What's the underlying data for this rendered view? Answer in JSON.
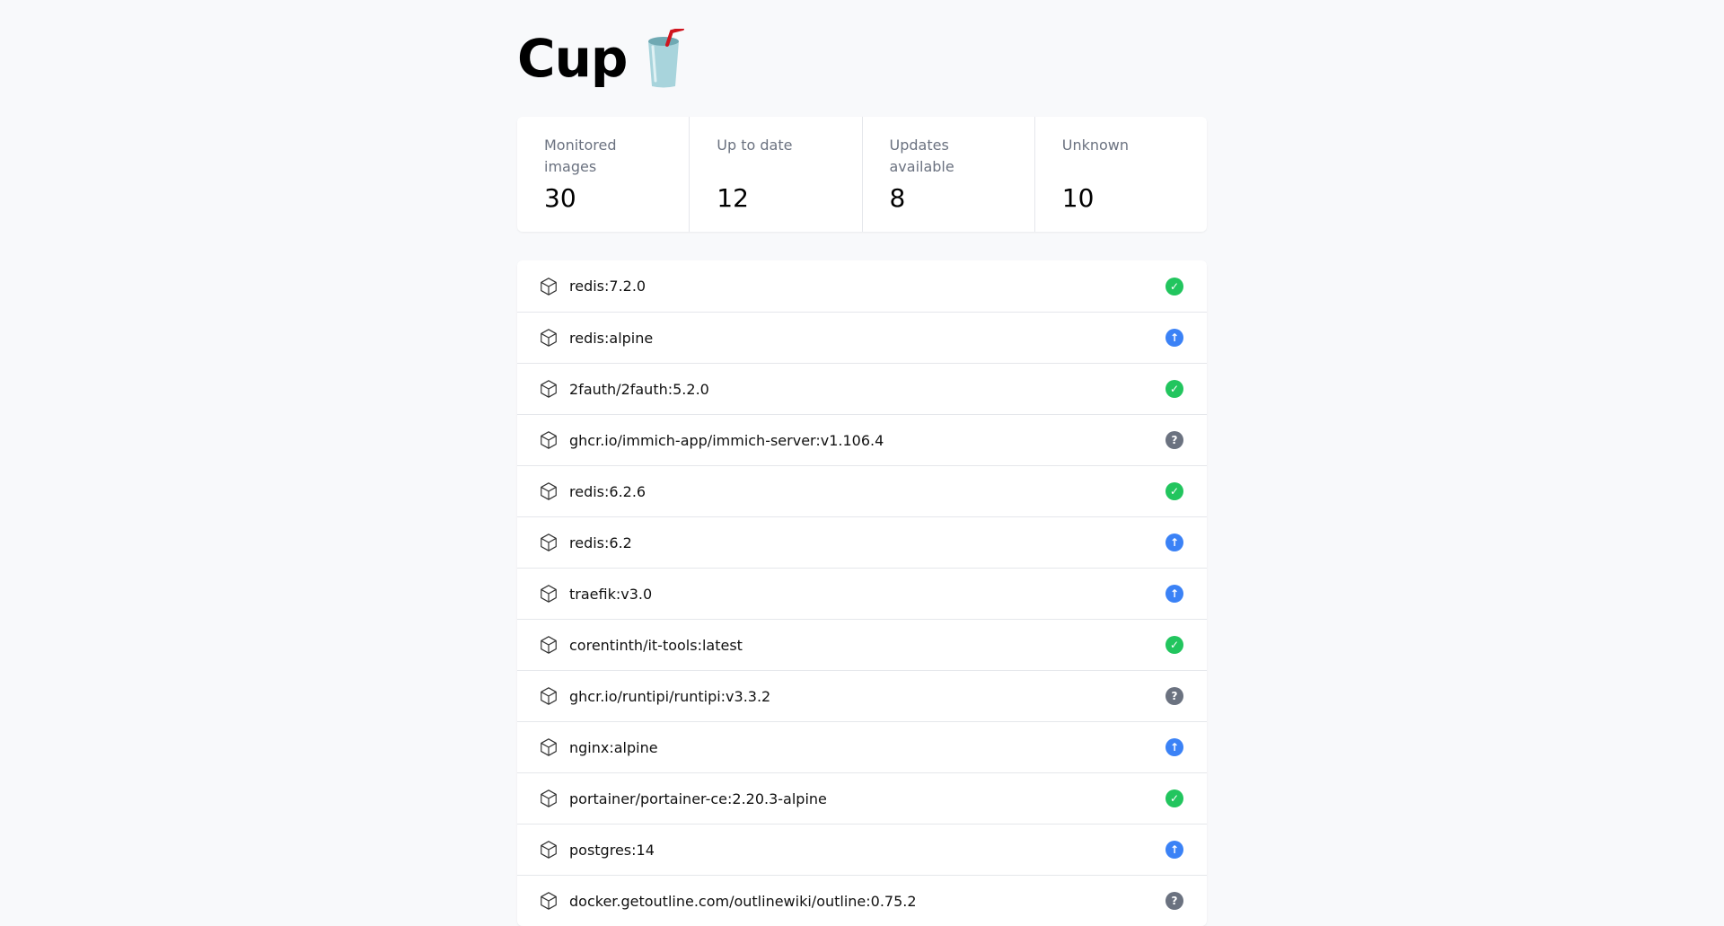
{
  "header": {
    "title": "Cup",
    "logo_icon": "cup-with-straw-emoji"
  },
  "stats": [
    {
      "label": "Monitored images",
      "value": "30"
    },
    {
      "label": "Up to date",
      "value": "12"
    },
    {
      "label": "Updates available",
      "value": "8"
    },
    {
      "label": "Unknown",
      "value": "10"
    }
  ],
  "status_colors": {
    "up_to_date": "#22c55e",
    "update_available": "#3b82f6",
    "unknown": "#6b7280"
  },
  "images": [
    {
      "name": "redis:7.2.0",
      "status": "up_to_date"
    },
    {
      "name": "redis:alpine",
      "status": "update_available"
    },
    {
      "name": "2fauth/2fauth:5.2.0",
      "status": "up_to_date"
    },
    {
      "name": "ghcr.io/immich-app/immich-server:v1.106.4",
      "status": "unknown"
    },
    {
      "name": "redis:6.2.6",
      "status": "up_to_date"
    },
    {
      "name": "redis:6.2",
      "status": "update_available"
    },
    {
      "name": "traefik:v3.0",
      "status": "update_available"
    },
    {
      "name": "corentinth/it-tools:latest",
      "status": "up_to_date"
    },
    {
      "name": "ghcr.io/runtipi/runtipi:v3.3.2",
      "status": "unknown"
    },
    {
      "name": "nginx:alpine",
      "status": "update_available"
    },
    {
      "name": "portainer/portainer-ce:2.20.3-alpine",
      "status": "up_to_date"
    },
    {
      "name": "postgres:14",
      "status": "update_available"
    },
    {
      "name": "docker.getoutline.com/outlinewiki/outline:0.75.2",
      "status": "unknown"
    }
  ]
}
